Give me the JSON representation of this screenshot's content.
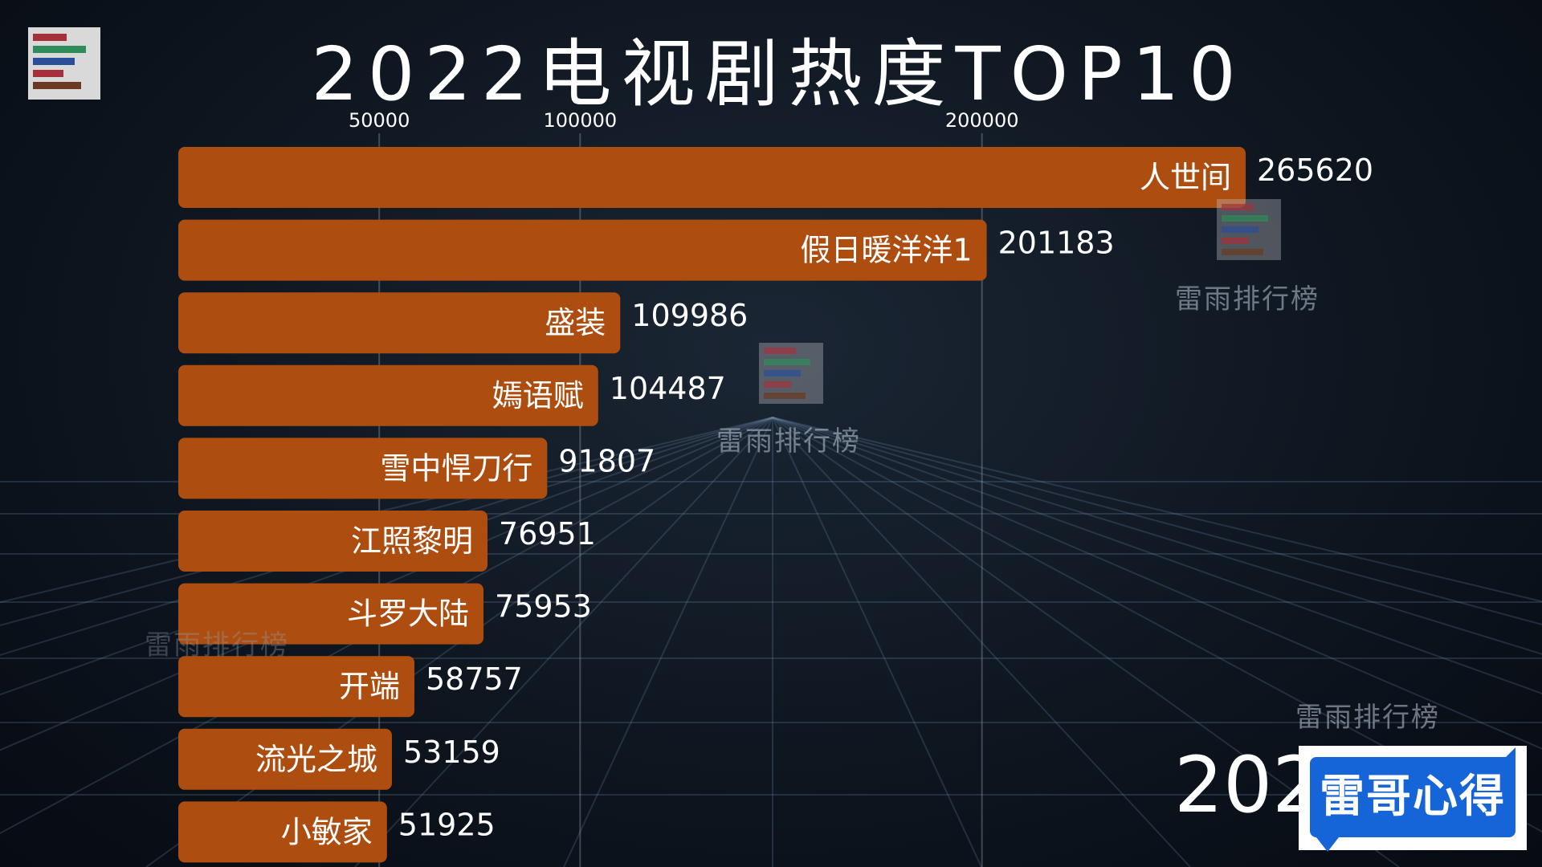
{
  "title": "2022电视剧热度TOP10",
  "year_partial": "202",
  "badge_text": "雷哥心得",
  "watermark_text": "雷雨排行榜",
  "colors": {
    "bar": "#ad4e10",
    "logo_red": "#a5303a",
    "logo_green": "#2e8b5a",
    "logo_blue": "#2a4e9a",
    "logo_brown": "#6b3a20",
    "badge_blue": "#1565d8"
  },
  "chart_data": {
    "type": "bar",
    "orientation": "horizontal",
    "title": "2022电视剧热度TOP10",
    "categories": [
      "人世间",
      "假日暖洋洋1",
      "盛装",
      "嫣语赋",
      "雪中悍刀行",
      "江照黎明",
      "斗罗大陆",
      "开端",
      "流光之城",
      "小敏家"
    ],
    "values": [
      265620,
      201183,
      109986,
      104487,
      91807,
      76951,
      75953,
      58757,
      53159,
      51925
    ],
    "value_labels": [
      "265620",
      "201183",
      "109986",
      "104487",
      "91807",
      "76951",
      "75953",
      "58757",
      "53159",
      "51925"
    ],
    "xticks": [
      50000,
      100000,
      200000
    ],
    "xtick_labels": [
      "50000",
      "100000",
      "200000"
    ],
    "xlim": [
      0,
      265620
    ],
    "xlabel": "",
    "ylabel": "",
    "grid": true,
    "axis_position": "top"
  }
}
